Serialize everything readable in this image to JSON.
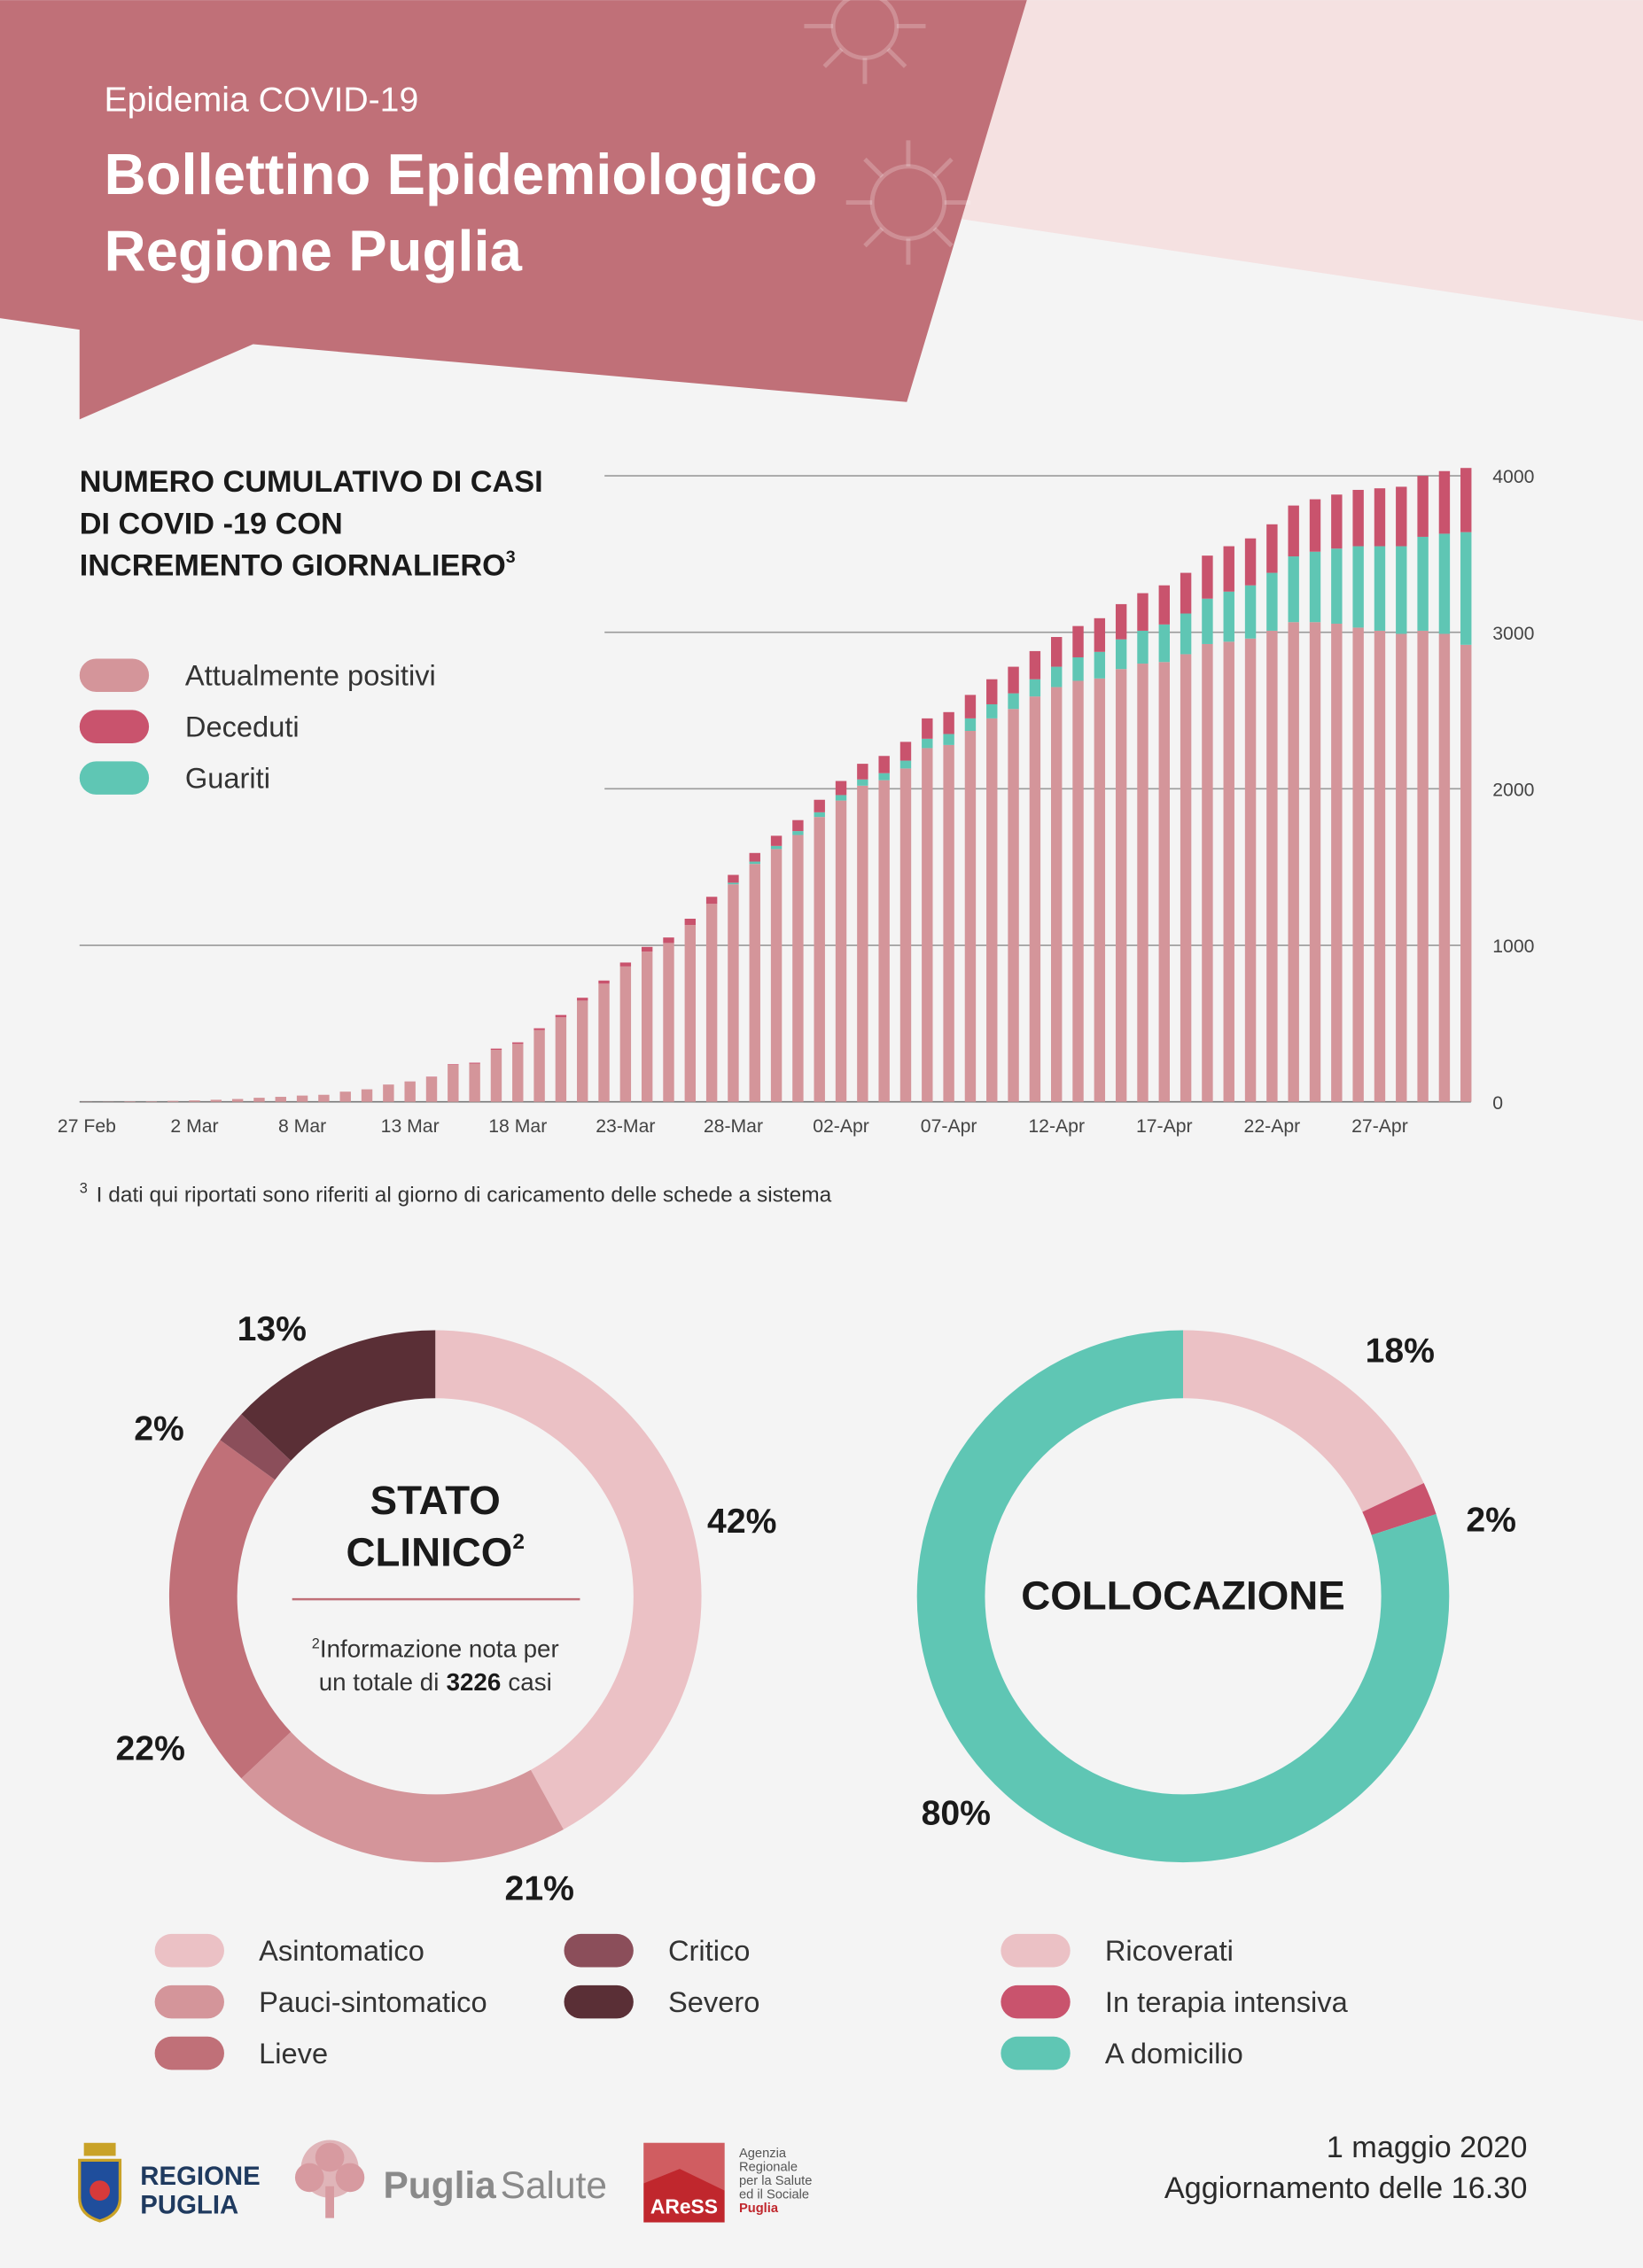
{
  "header": {
    "kicker": "Epidemia COVID-19",
    "title": [
      "Bollettino Epidemiologico",
      "Regione Puglia"
    ]
  },
  "chart_data": [
    {
      "type": "bar",
      "stacked": true,
      "title": [
        "NUMERO CUMULATIVO DI CASI",
        "DI COVID -19  CON",
        "INCREMENTO GIORNALIERO"
      ],
      "title_sup": "3",
      "categories": [
        "27 Feb",
        null,
        null,
        null,
        null,
        "2 Mar",
        null,
        null,
        null,
        null,
        "8 Mar",
        null,
        null,
        null,
        null,
        "13 Mar",
        null,
        null,
        null,
        null,
        "18 Mar",
        null,
        null,
        null,
        null,
        "23-Mar",
        null,
        null,
        null,
        null,
        "28-Mar",
        null,
        null,
        null,
        null,
        "02-Apr",
        null,
        null,
        null,
        null,
        "07-Apr",
        null,
        null,
        null,
        null,
        "12-Apr",
        null,
        null,
        null,
        null,
        "17-Apr",
        null,
        null,
        null,
        null,
        "22-Apr",
        null,
        null,
        null,
        null,
        "27-Apr",
        null,
        null,
        null,
        null
      ],
      "series": [
        {
          "name": "Attualmente positivi",
          "color": "#d4959a",
          "values": [
            1,
            1,
            3,
            3,
            6,
            9,
            13,
            18,
            26,
            32,
            40,
            45,
            65,
            80,
            109,
            129,
            157,
            236,
            244,
            332,
            370,
            458,
            540,
            647,
            755,
            865,
            960,
            1015,
            1130,
            1265,
            1390,
            1520,
            1615,
            1705,
            1820,
            1925,
            2020,
            2055,
            2130,
            2260,
            2280,
            2370,
            2450,
            2510,
            2590,
            2650,
            2690,
            2705,
            2765,
            2800,
            2810,
            2860,
            2925,
            2940,
            2960,
            3010,
            3065,
            3065,
            3055,
            3030,
            3010,
            2990,
            3010,
            2990,
            2920
          ]
        },
        {
          "name": "Deceduti",
          "color": "#c9536d",
          "values": [
            0,
            0,
            0,
            0,
            0,
            0,
            0,
            0,
            0,
            0,
            0,
            0,
            0,
            0,
            1,
            1,
            3,
            4,
            6,
            8,
            10,
            12,
            15,
            18,
            20,
            25,
            30,
            35,
            40,
            45,
            50,
            55,
            65,
            70,
            80,
            90,
            100,
            110,
            120,
            130,
            140,
            150,
            160,
            170,
            180,
            190,
            200,
            215,
            225,
            240,
            250,
            260,
            275,
            290,
            300,
            310,
            325,
            335,
            345,
            360,
            370,
            380,
            390,
            400,
            410
          ]
        },
        {
          "name": "Guariti",
          "color": "#5fc6b4",
          "values": [
            0,
            0,
            0,
            0,
            0,
            0,
            0,
            0,
            0,
            0,
            0,
            0,
            0,
            0,
            0,
            0,
            0,
            0,
            0,
            0,
            0,
            0,
            0,
            0,
            0,
            0,
            0,
            0,
            0,
            0,
            10,
            15,
            20,
            25,
            30,
            35,
            40,
            45,
            50,
            60,
            70,
            80,
            90,
            100,
            110,
            130,
            150,
            170,
            190,
            210,
            240,
            260,
            290,
            320,
            340,
            370,
            420,
            450,
            480,
            520,
            540,
            560,
            600,
            640,
            720
          ]
        }
      ],
      "stack_order": [
        0,
        2,
        1
      ],
      "ylim": [
        0,
        4100
      ],
      "yticks": [
        0,
        1000,
        2000,
        3000,
        4000
      ],
      "y_axis_side": "right",
      "grid": true
    },
    {
      "type": "pie",
      "donut": true,
      "title": [
        "STATO",
        "CLINICO"
      ],
      "title_sup": "2",
      "note": [
        "Informazione nota per",
        "un totale di"
      ],
      "note_sup": "2",
      "note_number": 3226,
      "note_unit": "casi",
      "categories": [
        "Asintomatico",
        "Pauci-sintomatico",
        "Lieve",
        "Critico",
        "Severo"
      ],
      "values": [
        42,
        21,
        22,
        2,
        13
      ],
      "value_labels": [
        "42%",
        "21%",
        "22%",
        "2%",
        "13%"
      ],
      "colors": [
        "#ebc1c5",
        "#d4959a",
        "#c07078",
        "#8b4e5a",
        "#5a2f36"
      ]
    },
    {
      "type": "pie",
      "donut": true,
      "title": [
        "COLLOCAZIONE"
      ],
      "categories": [
        "Ricoverati",
        "In terapia intensiva",
        "A domicilio"
      ],
      "values": [
        18,
        2,
        80
      ],
      "value_labels": [
        "18%",
        "2%",
        "80%"
      ],
      "colors": [
        "#ebc1c5",
        "#c9536d",
        "#5fc6b4"
      ]
    }
  ],
  "footnote": {
    "mark": "3",
    "text": "I dati qui riportati sono riferiti al giorno di caricamento delle schede a sistema"
  },
  "footer": {
    "regione": [
      "REGIONE",
      "PUGLIA"
    ],
    "puglia_salute": [
      "Puglia",
      "Salute"
    ],
    "aress": {
      "name": "AReSS",
      "lines": [
        "Agenzia",
        "Regionale",
        "per la Salute",
        "ed il Sociale",
        "Puglia"
      ]
    },
    "date": "1 maggio 2020",
    "update": "Aggiornamento delle 16.30"
  }
}
